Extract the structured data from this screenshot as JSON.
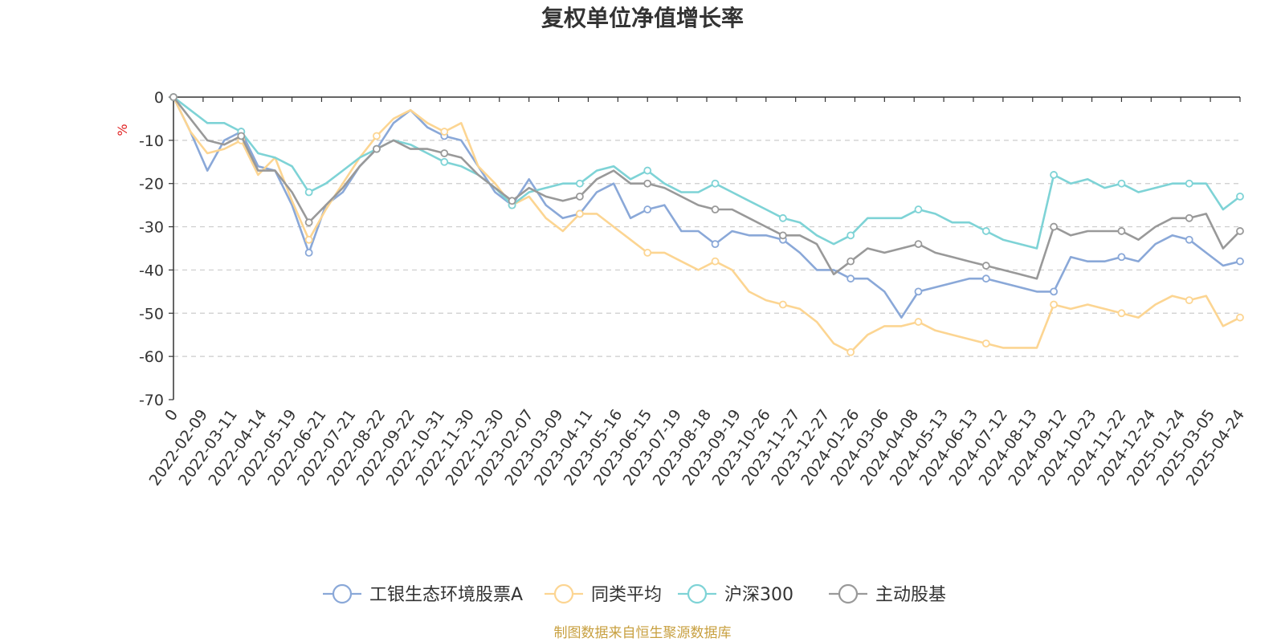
{
  "chart_data": {
    "type": "line",
    "title": "复权单位净值增长率",
    "ylabel": "%",
    "ylim": [
      -70,
      0
    ],
    "yticks": [
      0,
      -10,
      -20,
      -30,
      -40,
      -50,
      -60,
      -70
    ],
    "x_tick_labels": [
      "0",
      "2022-02-09",
      "2022-03-11",
      "2022-04-14",
      "2022-05-19",
      "2022-06-21",
      "2022-07-21",
      "2022-08-22",
      "2022-09-22",
      "2022-10-31",
      "2022-11-30",
      "2022-12-30",
      "2023-02-07",
      "2023-03-09",
      "2023-04-11",
      "2023-05-16",
      "2023-06-15",
      "2023-07-19",
      "2023-08-18",
      "2023-09-19",
      "2023-10-26",
      "2023-11-27",
      "2023-12-27",
      "2024-01-26",
      "2024-03-06",
      "2024-04-08",
      "2024-05-13",
      "2024-06-13",
      "2024-07-12",
      "2024-08-13",
      "2024-09-12",
      "2024-10-23",
      "2024-11-22",
      "2024-12-24",
      "2025-01-24",
      "2025-03-05",
      "2025-04-24"
    ],
    "grid": true,
    "legend_position": "bottom",
    "series": [
      {
        "name": "工银生态环境股票A",
        "color": "#8aa8d8",
        "values": [
          0,
          -8,
          -17,
          -10,
          -8,
          -16,
          -17,
          -25,
          -36,
          -25,
          -22,
          -16,
          -12,
          -6,
          -3,
          -7,
          -9,
          -10,
          -16,
          -22,
          -25,
          -19,
          -25,
          -28,
          -27,
          -22,
          -20,
          -28,
          -26,
          -25,
          -31,
          -31,
          -34,
          -31,
          -32,
          -32,
          -33,
          -36,
          -40,
          -40,
          -42,
          -42,
          -45,
          -51,
          -45,
          -44,
          -43,
          -42,
          -42,
          -43,
          -44,
          -45,
          -45,
          -37,
          -38,
          -38,
          -37,
          -38,
          -34,
          -32,
          -33,
          -36,
          -39,
          -38
        ]
      },
      {
        "name": "同类平均",
        "color": "#fcd592",
        "values": [
          0,
          -8,
          -13,
          -12,
          -10,
          -18,
          -14,
          -24,
          -33,
          -26,
          -20,
          -14,
          -9,
          -5,
          -3,
          -6,
          -8,
          -6,
          -16,
          -20,
          -25,
          -23,
          -28,
          -31,
          -27,
          -27,
          -30,
          -33,
          -36,
          -36,
          -38,
          -40,
          -38,
          -40,
          -45,
          -47,
          -48,
          -49,
          -52,
          -57,
          -59,
          -55,
          -53,
          -53,
          -52,
          -54,
          -55,
          -56,
          -57,
          -58,
          -58,
          -58,
          -48,
          -49,
          -48,
          -49,
          -50,
          -51,
          -48,
          -46,
          -47,
          -46,
          -53,
          -51
        ]
      },
      {
        "name": "沪深300",
        "color": "#7ed3d6",
        "values": [
          0,
          -3,
          -6,
          -6,
          -8,
          -13,
          -14,
          -16,
          -22,
          -20,
          -17,
          -14,
          -12,
          -10,
          -11,
          -13,
          -15,
          -16,
          -18,
          -21,
          -25,
          -22,
          -21,
          -20,
          -20,
          -17,
          -16,
          -19,
          -17,
          -20,
          -22,
          -22,
          -20,
          -22,
          -24,
          -26,
          -28,
          -29,
          -32,
          -34,
          -32,
          -28,
          -28,
          -28,
          -26,
          -27,
          -29,
          -29,
          -31,
          -33,
          -34,
          -35,
          -18,
          -20,
          -19,
          -21,
          -20,
          -22,
          -21,
          -20,
          -20,
          -20,
          -26,
          -23
        ]
      },
      {
        "name": "主动股基",
        "color": "#999999",
        "values": [
          0,
          -5,
          -10,
          -11,
          -9,
          -17,
          -17,
          -22,
          -29,
          -25,
          -21,
          -16,
          -12,
          -10,
          -12,
          -12,
          -13,
          -14,
          -18,
          -21,
          -24,
          -21,
          -23,
          -24,
          -23,
          -19,
          -17,
          -20,
          -20,
          -21,
          -23,
          -25,
          -26,
          -26,
          -28,
          -30,
          -32,
          -32,
          -34,
          -41,
          -38,
          -35,
          -36,
          -35,
          -34,
          -36,
          -37,
          -38,
          -39,
          -40,
          -41,
          -42,
          -30,
          -32,
          -31,
          -31,
          -31,
          -33,
          -30,
          -28,
          -28,
          -27,
          -35,
          -31
        ]
      }
    ]
  },
  "source_text": "制图数据来自恒生聚源数据库",
  "colors": {
    "axis": "#333333",
    "grid": "#cccccc",
    "unit": "#e02020",
    "source": "#c8a040"
  }
}
